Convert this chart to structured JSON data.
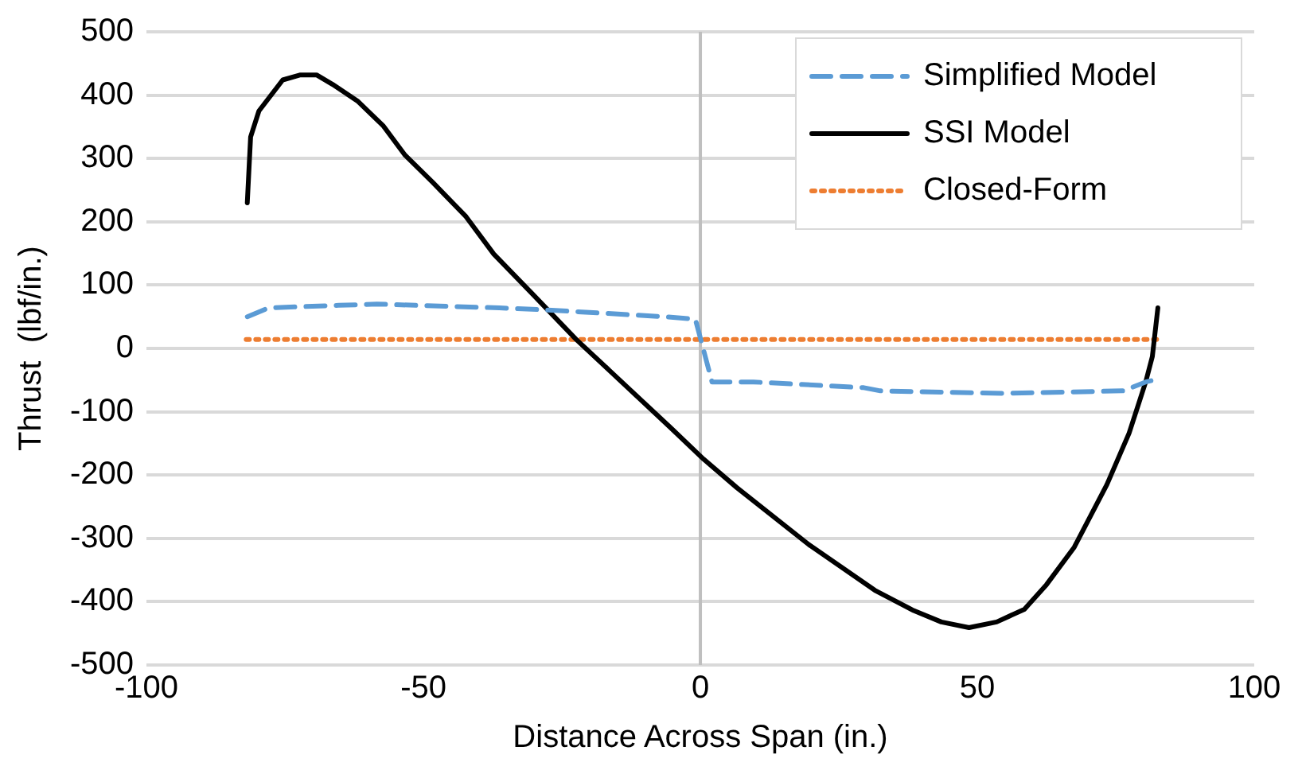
{
  "chart_data": {
    "type": "line",
    "xlabel": "Distance Across Span (in.)",
    "ylabel": "Thrust  (lbf/in.)",
    "xlim": [
      -100,
      100
    ],
    "xticks": [
      -100,
      -50,
      0,
      50,
      100
    ],
    "ylim": [
      -500,
      500
    ],
    "yticks": [
      -500,
      -400,
      -300,
      -200,
      -100,
      0,
      100,
      200,
      300,
      400,
      500
    ],
    "grid": "y",
    "legend": "top right",
    "series": [
      {
        "name": "Simplified Model",
        "color": "#5b9bd5",
        "line_style": "dashed",
        "x": [
          -81.8,
          -79.3,
          -78,
          -65.3,
          -58.4,
          -36.3,
          -28.3,
          -6.4,
          -0.9,
          2.1,
          9.6,
          29.5,
          32.5,
          54.5,
          76.4,
          80.4,
          82.4
        ],
        "values": [
          50,
          59,
          64,
          68,
          70,
          64,
          61,
          50,
          46,
          -53,
          -53,
          -62,
          -67,
          -71,
          -67,
          -53,
          -49
        ]
      },
      {
        "name": "SSI Model",
        "color": "#000000",
        "line_style": "solid",
        "x": [
          -81.8,
          -81.2,
          -79.7,
          -75.4,
          -72.2,
          -69.3,
          -66.4,
          -61.8,
          -57.3,
          -53.3,
          -48.3,
          -42.3,
          -37.3,
          -30.3,
          -22.4,
          -16.4,
          -5.4,
          0.6,
          6.6,
          19.6,
          31.5,
          38.5,
          43.5,
          48.5,
          53.5,
          58.5,
          62.5,
          67.5,
          73.4,
          77.4,
          80.4,
          81.6,
          82.6
        ],
        "values": [
          230,
          334,
          375,
          424,
          432,
          432,
          417,
          390,
          352,
          305,
          262,
          208,
          149,
          86,
          14,
          -35,
          -125,
          -175,
          -220,
          -310,
          -382,
          -414,
          -432,
          -441,
          -432,
          -412,
          -373,
          -314,
          -215,
          -134,
          -53,
          -13,
          64
        ]
      },
      {
        "name": "Closed-Form",
        "color": "#ed7d31",
        "line_style": "dotted",
        "x": [
          -82,
          82.5
        ],
        "values": [
          14,
          14
        ]
      }
    ]
  }
}
